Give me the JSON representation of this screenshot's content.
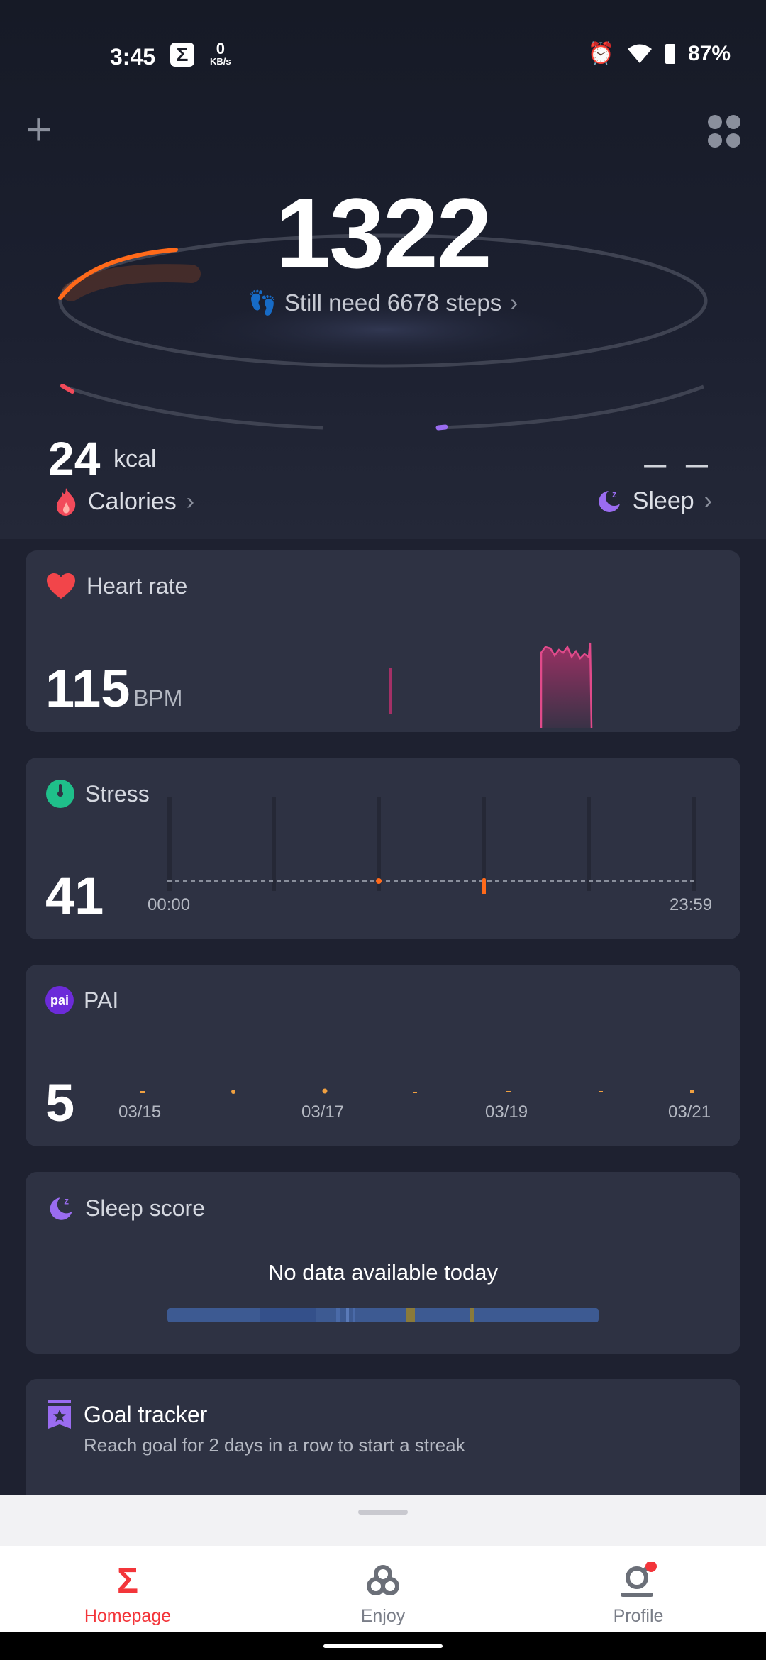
{
  "status_bar": {
    "time": "3:45",
    "net_value": "0",
    "net_unit": "KB/s",
    "battery": "87%"
  },
  "steps": {
    "count": "1322",
    "remaining_text": "Still need 6678 steps"
  },
  "calories": {
    "value": "24",
    "unit": "kcal",
    "label": "Calories"
  },
  "sleep_summary": {
    "value": "– –",
    "label": "Sleep"
  },
  "heart_rate": {
    "title": "Heart rate",
    "value": "115",
    "unit": "BPM"
  },
  "stress": {
    "title": "Stress",
    "value": "41",
    "axis_start": "00:00",
    "axis_end": "23:59"
  },
  "pai": {
    "title": "PAI",
    "value": "5",
    "dates": [
      "03/15",
      "03/17",
      "03/19",
      "03/21"
    ],
    "icon_text": "pai"
  },
  "sleep_score": {
    "title": "Sleep score",
    "message": "No data available today"
  },
  "goal_tracker": {
    "title": "Goal tracker",
    "subtitle": "Reach goal for 2 days in a row to start a streak"
  },
  "bottom_nav": {
    "items": [
      {
        "label": "Homepage",
        "active": true
      },
      {
        "label": "Enjoy",
        "active": false
      },
      {
        "label": "Profile",
        "active": false
      }
    ]
  },
  "colors": {
    "accent": "#f3353a",
    "steps_orange": "#ff6a1a",
    "heart": "#f2454a",
    "stress_green": "#1fbf8a",
    "pai_purple": "#6c2bd9",
    "sleep_purple": "#9a6cf0"
  }
}
